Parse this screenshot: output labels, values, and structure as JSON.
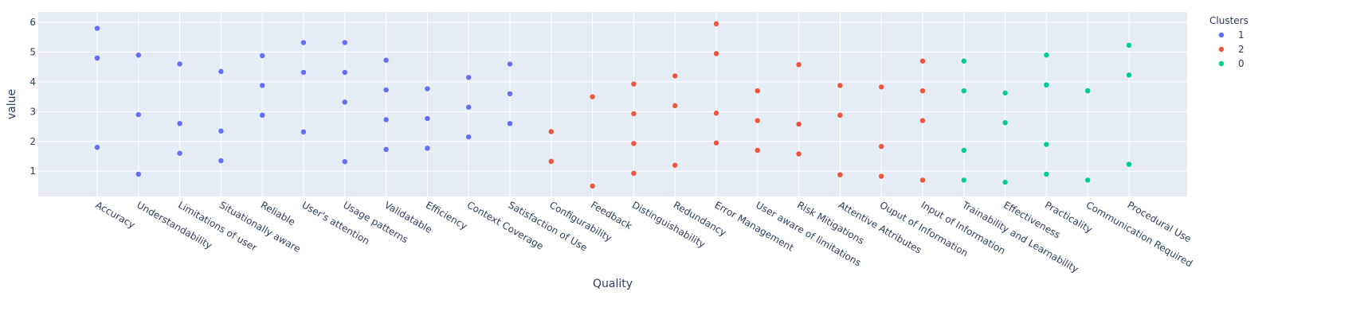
{
  "chart_data": {
    "type": "scatter",
    "xlabel": "Quality",
    "ylabel": "value",
    "ylim": [
      0.15,
      6.35
    ],
    "yticks": [
      1,
      2,
      3,
      4,
      5,
      6
    ],
    "grid": true,
    "legend": {
      "title": "Clusters",
      "placement": "top-right"
    },
    "plot_bg": "#e5ecf6",
    "categories": [
      "Accuracy",
      "Understandability",
      "Limitations of user",
      "Situationally aware",
      "Reliable",
      "User's attention",
      "Usage patterns",
      "Validatable",
      "Efficiency",
      "Context Coverage",
      "Satisfaction of Use",
      "Configurability",
      "Feedback",
      "Distinguishability",
      "Redundancy",
      "Error Management",
      "User aware of limitations",
      "Risk Mitigations",
      "Attentive Attributes",
      "Ouput of Information",
      "Input of Information",
      "Trainability and Learnability",
      "Effectiveness",
      "Practicality",
      "Communication Required",
      "Procedural Use"
    ],
    "series": [
      {
        "name": "1",
        "color": "#636efa",
        "points": [
          [
            "Accuracy",
            5.8
          ],
          [
            "Accuracy",
            4.8
          ],
          [
            "Accuracy",
            4.8
          ],
          [
            "Accuracy",
            1.8
          ],
          [
            "Understandability",
            4.9
          ],
          [
            "Understandability",
            2.9
          ],
          [
            "Understandability",
            0.9
          ],
          [
            "Limitations of user",
            4.6
          ],
          [
            "Limitations of user",
            2.6
          ],
          [
            "Limitations of user",
            1.6
          ],
          [
            "Situationally aware",
            4.35
          ],
          [
            "Situationally aware",
            2.35
          ],
          [
            "Situationally aware",
            1.35
          ],
          [
            "Reliable",
            4.88
          ],
          [
            "Reliable",
            3.88
          ],
          [
            "Reliable",
            2.88
          ],
          [
            "Reliable",
            2.88
          ],
          [
            "User's attention",
            5.32
          ],
          [
            "User's attention",
            4.32
          ],
          [
            "User's attention",
            2.32
          ],
          [
            "Usage patterns",
            5.32
          ],
          [
            "Usage patterns",
            4.32
          ],
          [
            "Usage patterns",
            3.32
          ],
          [
            "Usage patterns",
            1.32
          ],
          [
            "Validatable",
            4.73
          ],
          [
            "Validatable",
            3.73
          ],
          [
            "Validatable",
            2.73
          ],
          [
            "Validatable",
            1.73
          ],
          [
            "Efficiency",
            3.77
          ],
          [
            "Efficiency",
            2.77
          ],
          [
            "Efficiency",
            1.77
          ],
          [
            "Context Coverage",
            4.15
          ],
          [
            "Context Coverage",
            3.15
          ],
          [
            "Context Coverage",
            2.15
          ],
          [
            "Satisfaction of Use",
            4.6
          ],
          [
            "Satisfaction of Use",
            3.6
          ],
          [
            "Satisfaction of Use",
            2.6
          ]
        ]
      },
      {
        "name": "2",
        "color": "#ef553b",
        "points": [
          [
            "Configurability",
            2.33
          ],
          [
            "Configurability",
            1.33
          ],
          [
            "Configurability",
            1.33
          ],
          [
            "Feedback",
            3.5
          ],
          [
            "Feedback",
            0.5
          ],
          [
            "Distinguishability",
            3.93
          ],
          [
            "Distinguishability",
            2.93
          ],
          [
            "Distinguishability",
            1.93
          ],
          [
            "Distinguishability",
            0.93
          ],
          [
            "Redundancy",
            4.2
          ],
          [
            "Redundancy",
            3.2
          ],
          [
            "Redundancy",
            1.2
          ],
          [
            "Error Management",
            5.95
          ],
          [
            "Error Management",
            4.95
          ],
          [
            "Error Management",
            2.95
          ],
          [
            "Error Management",
            1.95
          ],
          [
            "User aware of limitations",
            3.7
          ],
          [
            "User aware of limitations",
            2.7
          ],
          [
            "User aware of limitations",
            1.7
          ],
          [
            "Risk Mitigations",
            4.58
          ],
          [
            "Risk Mitigations",
            2.58
          ],
          [
            "Risk Mitigations",
            1.58
          ],
          [
            "Attentive Attributes",
            3.88
          ],
          [
            "Attentive Attributes",
            2.88
          ],
          [
            "Attentive Attributes",
            2.88
          ],
          [
            "Attentive Attributes",
            0.88
          ],
          [
            "Ouput of Information",
            3.83
          ],
          [
            "Ouput of Information",
            1.83
          ],
          [
            "Ouput of Information",
            0.83
          ],
          [
            "Input of Information",
            4.7
          ],
          [
            "Input of Information",
            3.7
          ],
          [
            "Input of Information",
            2.7
          ],
          [
            "Input of Information",
            0.7
          ]
        ]
      },
      {
        "name": "0",
        "color": "#00cc96",
        "points": [
          [
            "Trainability and Learnability",
            4.7
          ],
          [
            "Trainability and Learnability",
            3.7
          ],
          [
            "Trainability and Learnability",
            1.7
          ],
          [
            "Trainability and Learnability",
            0.7
          ],
          [
            "Effectiveness",
            3.63
          ],
          [
            "Effectiveness",
            2.63
          ],
          [
            "Effectiveness",
            0.63
          ],
          [
            "Practicality",
            4.9
          ],
          [
            "Practicality",
            3.9
          ],
          [
            "Practicality",
            3.9
          ],
          [
            "Practicality",
            1.9
          ],
          [
            "Practicality",
            0.9
          ],
          [
            "Communication Required",
            3.7
          ],
          [
            "Communication Required",
            3.7
          ],
          [
            "Communication Required",
            0.7
          ],
          [
            "Procedural Use",
            5.23
          ],
          [
            "Procedural Use",
            4.23
          ],
          [
            "Procedural Use",
            1.23
          ],
          [
            "Procedural Use",
            1.23
          ]
        ]
      }
    ]
  }
}
